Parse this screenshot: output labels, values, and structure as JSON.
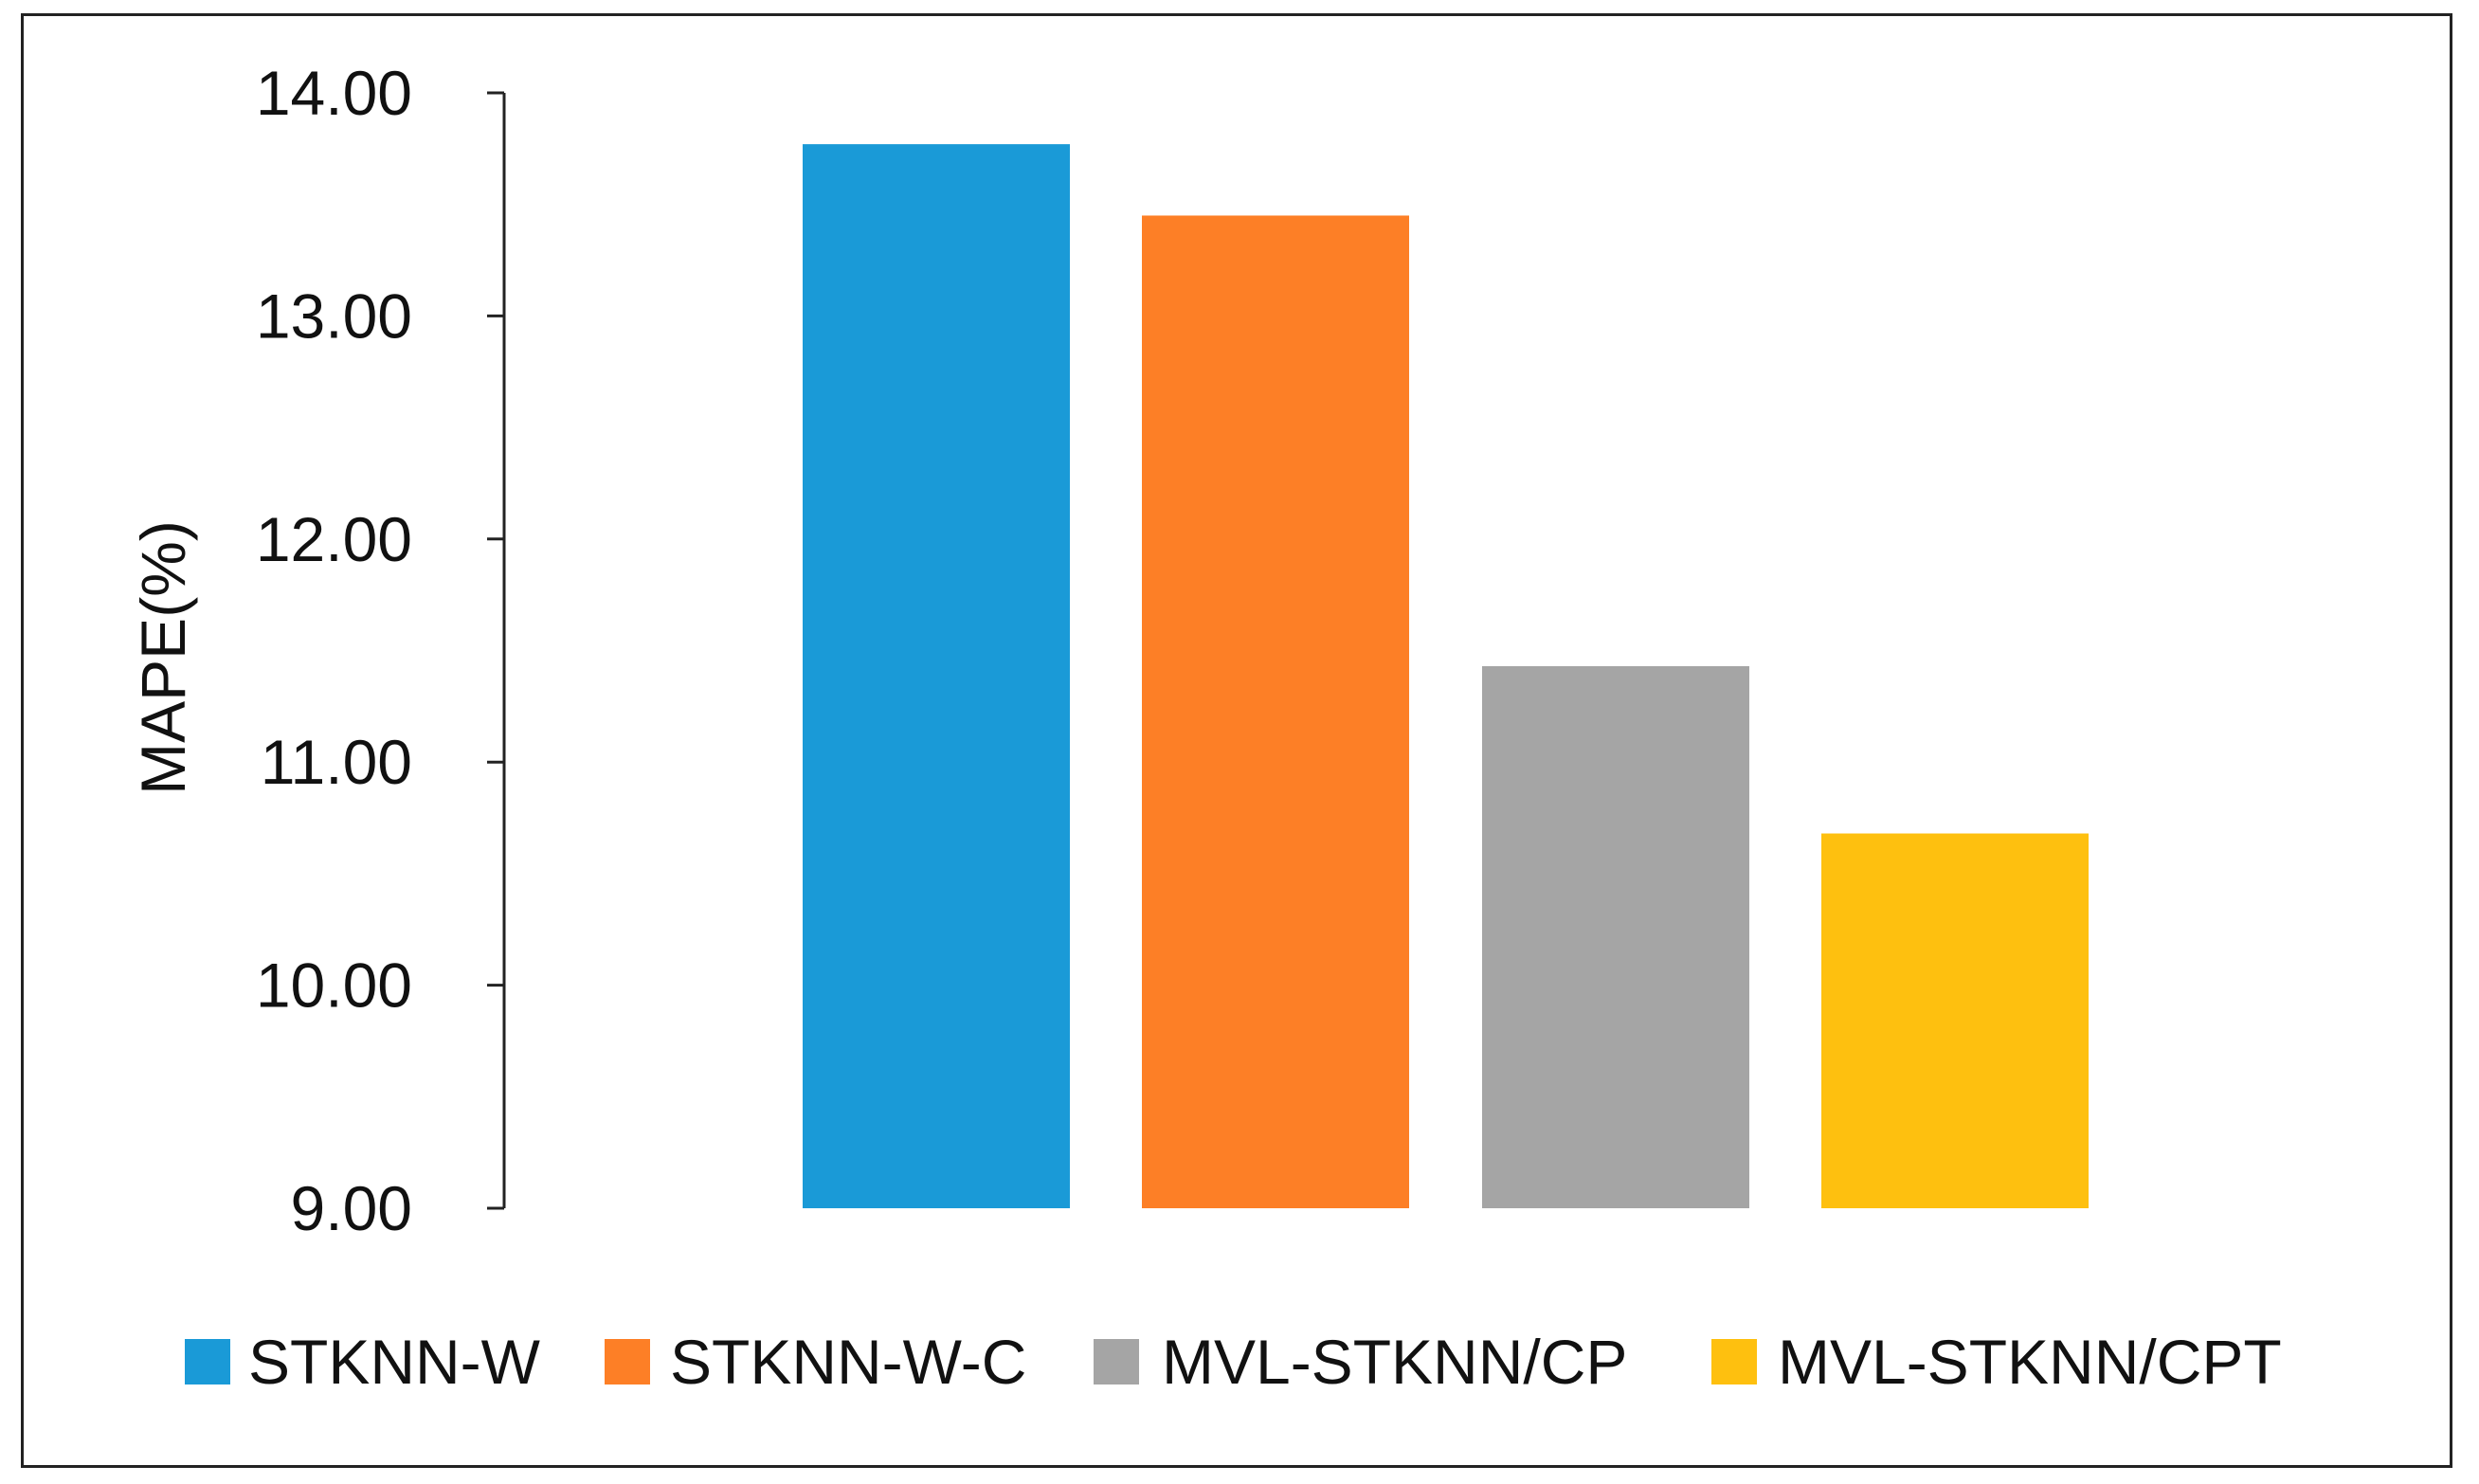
{
  "chart_data": {
    "type": "bar",
    "title": "",
    "xlabel": "",
    "ylabel": "MAPE(%)",
    "ylim": [
      9.0,
      14.0
    ],
    "yticks": [
      "9.00",
      "10.00",
      "11.00",
      "12.00",
      "13.00",
      "14.00"
    ],
    "grid": false,
    "legend_position": "bottom",
    "series": [
      {
        "name": "STKNN-W",
        "value": 13.77,
        "color": "#1a9ad7"
      },
      {
        "name": "STKNN-W-C",
        "value": 13.45,
        "color": "#fd7f26"
      },
      {
        "name": "MVL-STKNN/CP",
        "value": 11.43,
        "color": "#a5a5a5"
      },
      {
        "name": "MVL-STKNN/CPT",
        "value": 10.68,
        "color": "#fec00f"
      }
    ]
  }
}
